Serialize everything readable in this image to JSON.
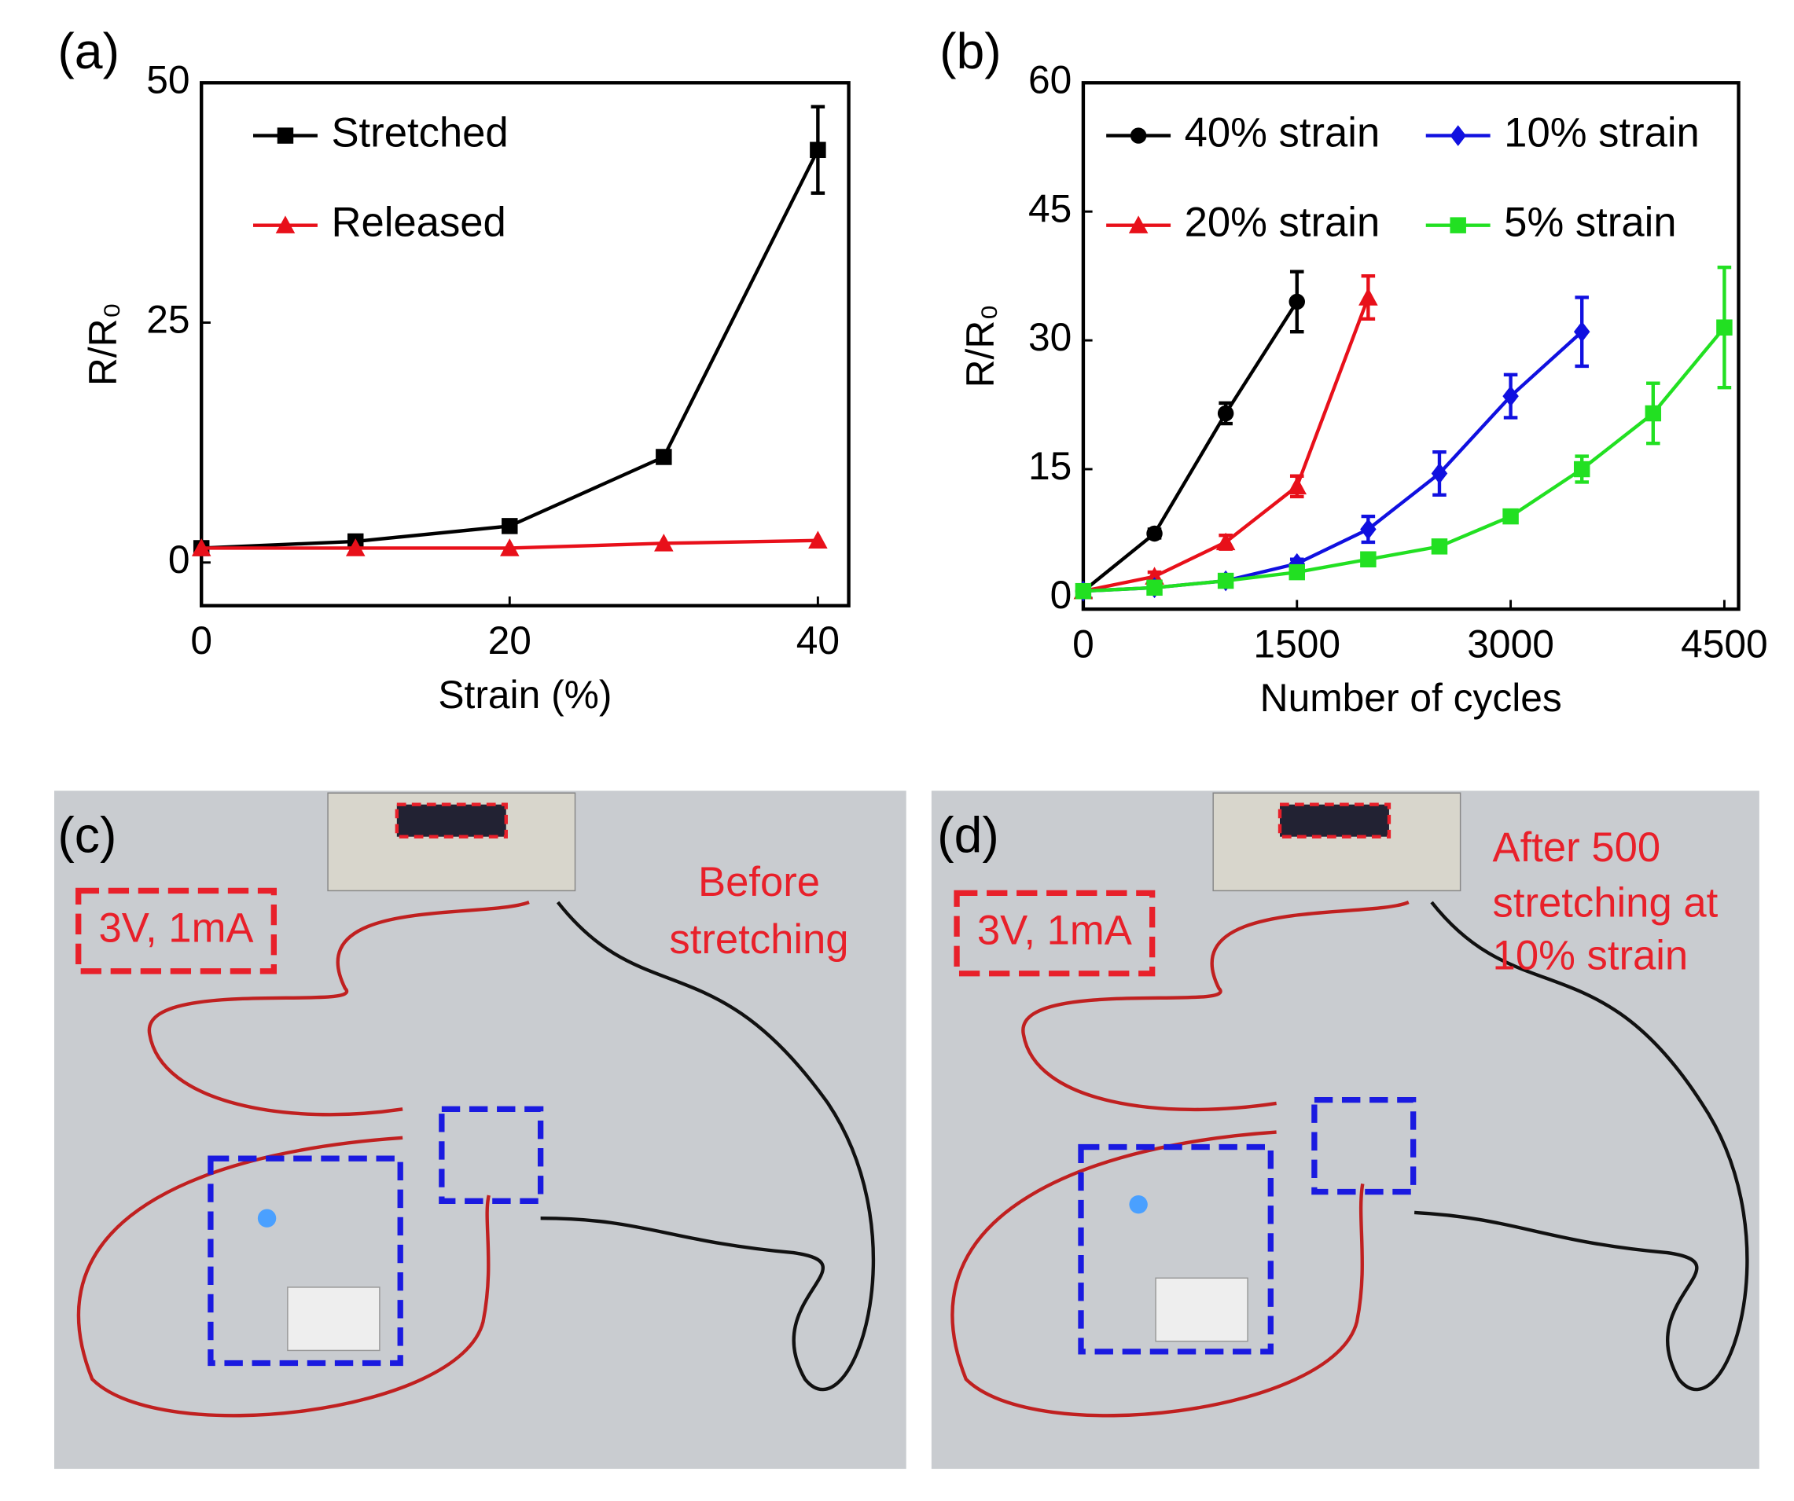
{
  "chart_data": [
    {
      "type": "line",
      "panel_label": "(a)",
      "x_label": "Strain (%)",
      "y_label": "R/R₀",
      "x": [
        0,
        10,
        20,
        30,
        40
      ],
      "xlim": [
        0,
        42
      ],
      "xticks": [
        0,
        20,
        40
      ],
      "ylim": [
        -4.5,
        50
      ],
      "yticks": [
        0,
        25,
        50
      ],
      "series": [
        {
          "name": "Stretched",
          "color": "#000000",
          "marker": "square",
          "values": [
            1.5,
            2.2,
            3.8,
            11,
            43
          ],
          "errors": [
            null,
            null,
            null,
            null,
            4.5
          ]
        },
        {
          "name": "Released",
          "color": "#e8101a",
          "marker": "triangle",
          "values": [
            1.5,
            1.5,
            1.5,
            2,
            2.3
          ],
          "errors": [
            null,
            null,
            null,
            null,
            null
          ]
        }
      ]
    },
    {
      "type": "line",
      "panel_label": "(b)",
      "x_label": "Number of cycles",
      "y_label": "R/R₀",
      "xlim": [
        0,
        4600
      ],
      "xticks": [
        0,
        1500,
        3000,
        4500
      ],
      "ylim": [
        -1.3,
        60
      ],
      "yticks": [
        0,
        15,
        30,
        45,
        60
      ],
      "series": [
        {
          "name": "40% strain",
          "color": "#000000",
          "marker": "circle",
          "x": [
            0,
            500,
            1000,
            1500
          ],
          "values": [
            0.8,
            7.5,
            21.5,
            34.5
          ],
          "errors": [
            null,
            0.5,
            1.2,
            3.5
          ]
        },
        {
          "name": "20% strain",
          "color": "#e8101a",
          "marker": "triangle",
          "x": [
            0,
            500,
            1000,
            1500,
            2000
          ],
          "values": [
            0.8,
            2.5,
            6.5,
            13,
            35
          ],
          "errors": [
            null,
            0.5,
            0.8,
            1.2,
            2.5
          ]
        },
        {
          "name": "10% strain",
          "color": "#1010e0",
          "marker": "diamond",
          "x": [
            0,
            500,
            1000,
            1500,
            2000,
            2500,
            3000,
            3500
          ],
          "values": [
            0.8,
            1.2,
            2,
            4,
            8,
            14.5,
            23.5,
            31
          ],
          "errors": [
            null,
            null,
            0.3,
            0.5,
            1.5,
            2.5,
            2.5,
            4
          ]
        },
        {
          "name": "5% strain",
          "color": "#22e022",
          "marker": "square",
          "x": [
            0,
            500,
            1000,
            1500,
            2000,
            2500,
            3000,
            3500,
            4000,
            4500
          ],
          "values": [
            0.8,
            1.2,
            2,
            3,
            4.5,
            6,
            9.5,
            15,
            21.5,
            31.5
          ],
          "errors": [
            null,
            null,
            null,
            null,
            null,
            null,
            null,
            1.5,
            3.5,
            7
          ]
        }
      ]
    }
  ],
  "photos": [
    {
      "label": "(c)",
      "source_label": "3V, 1mA",
      "note": [
        "Before",
        "stretching"
      ]
    },
    {
      "label": "(d)",
      "source_label": "3V, 1mA",
      "note": [
        "After 500",
        "stretching at",
        "10% strain"
      ]
    }
  ]
}
